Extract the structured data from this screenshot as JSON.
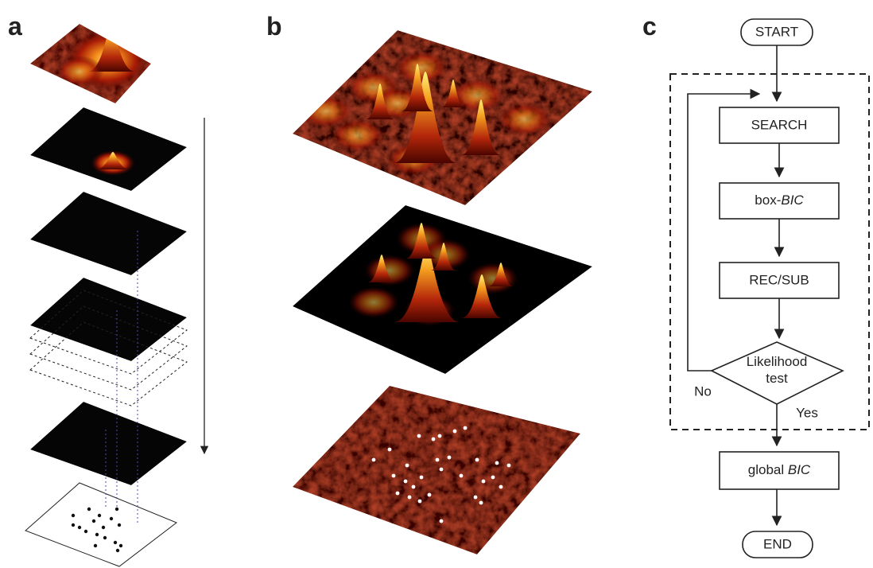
{
  "panels": [
    {
      "label": "a"
    },
    {
      "label": "b"
    },
    {
      "label": "c"
    }
  ],
  "flowchart": {
    "nodes": [
      {
        "label": "START"
      },
      {
        "label": "SEARCH"
      },
      {
        "label": [
          "box-",
          "BIC"
        ]
      },
      {
        "label": "REC/SUB"
      },
      {
        "label": [
          "Likelihood",
          "test"
        ]
      },
      {
        "label": [
          "global ",
          "BIC"
        ]
      },
      {
        "label": "END"
      }
    ],
    "edge_labels": [
      "No",
      "Yes"
    ]
  }
}
